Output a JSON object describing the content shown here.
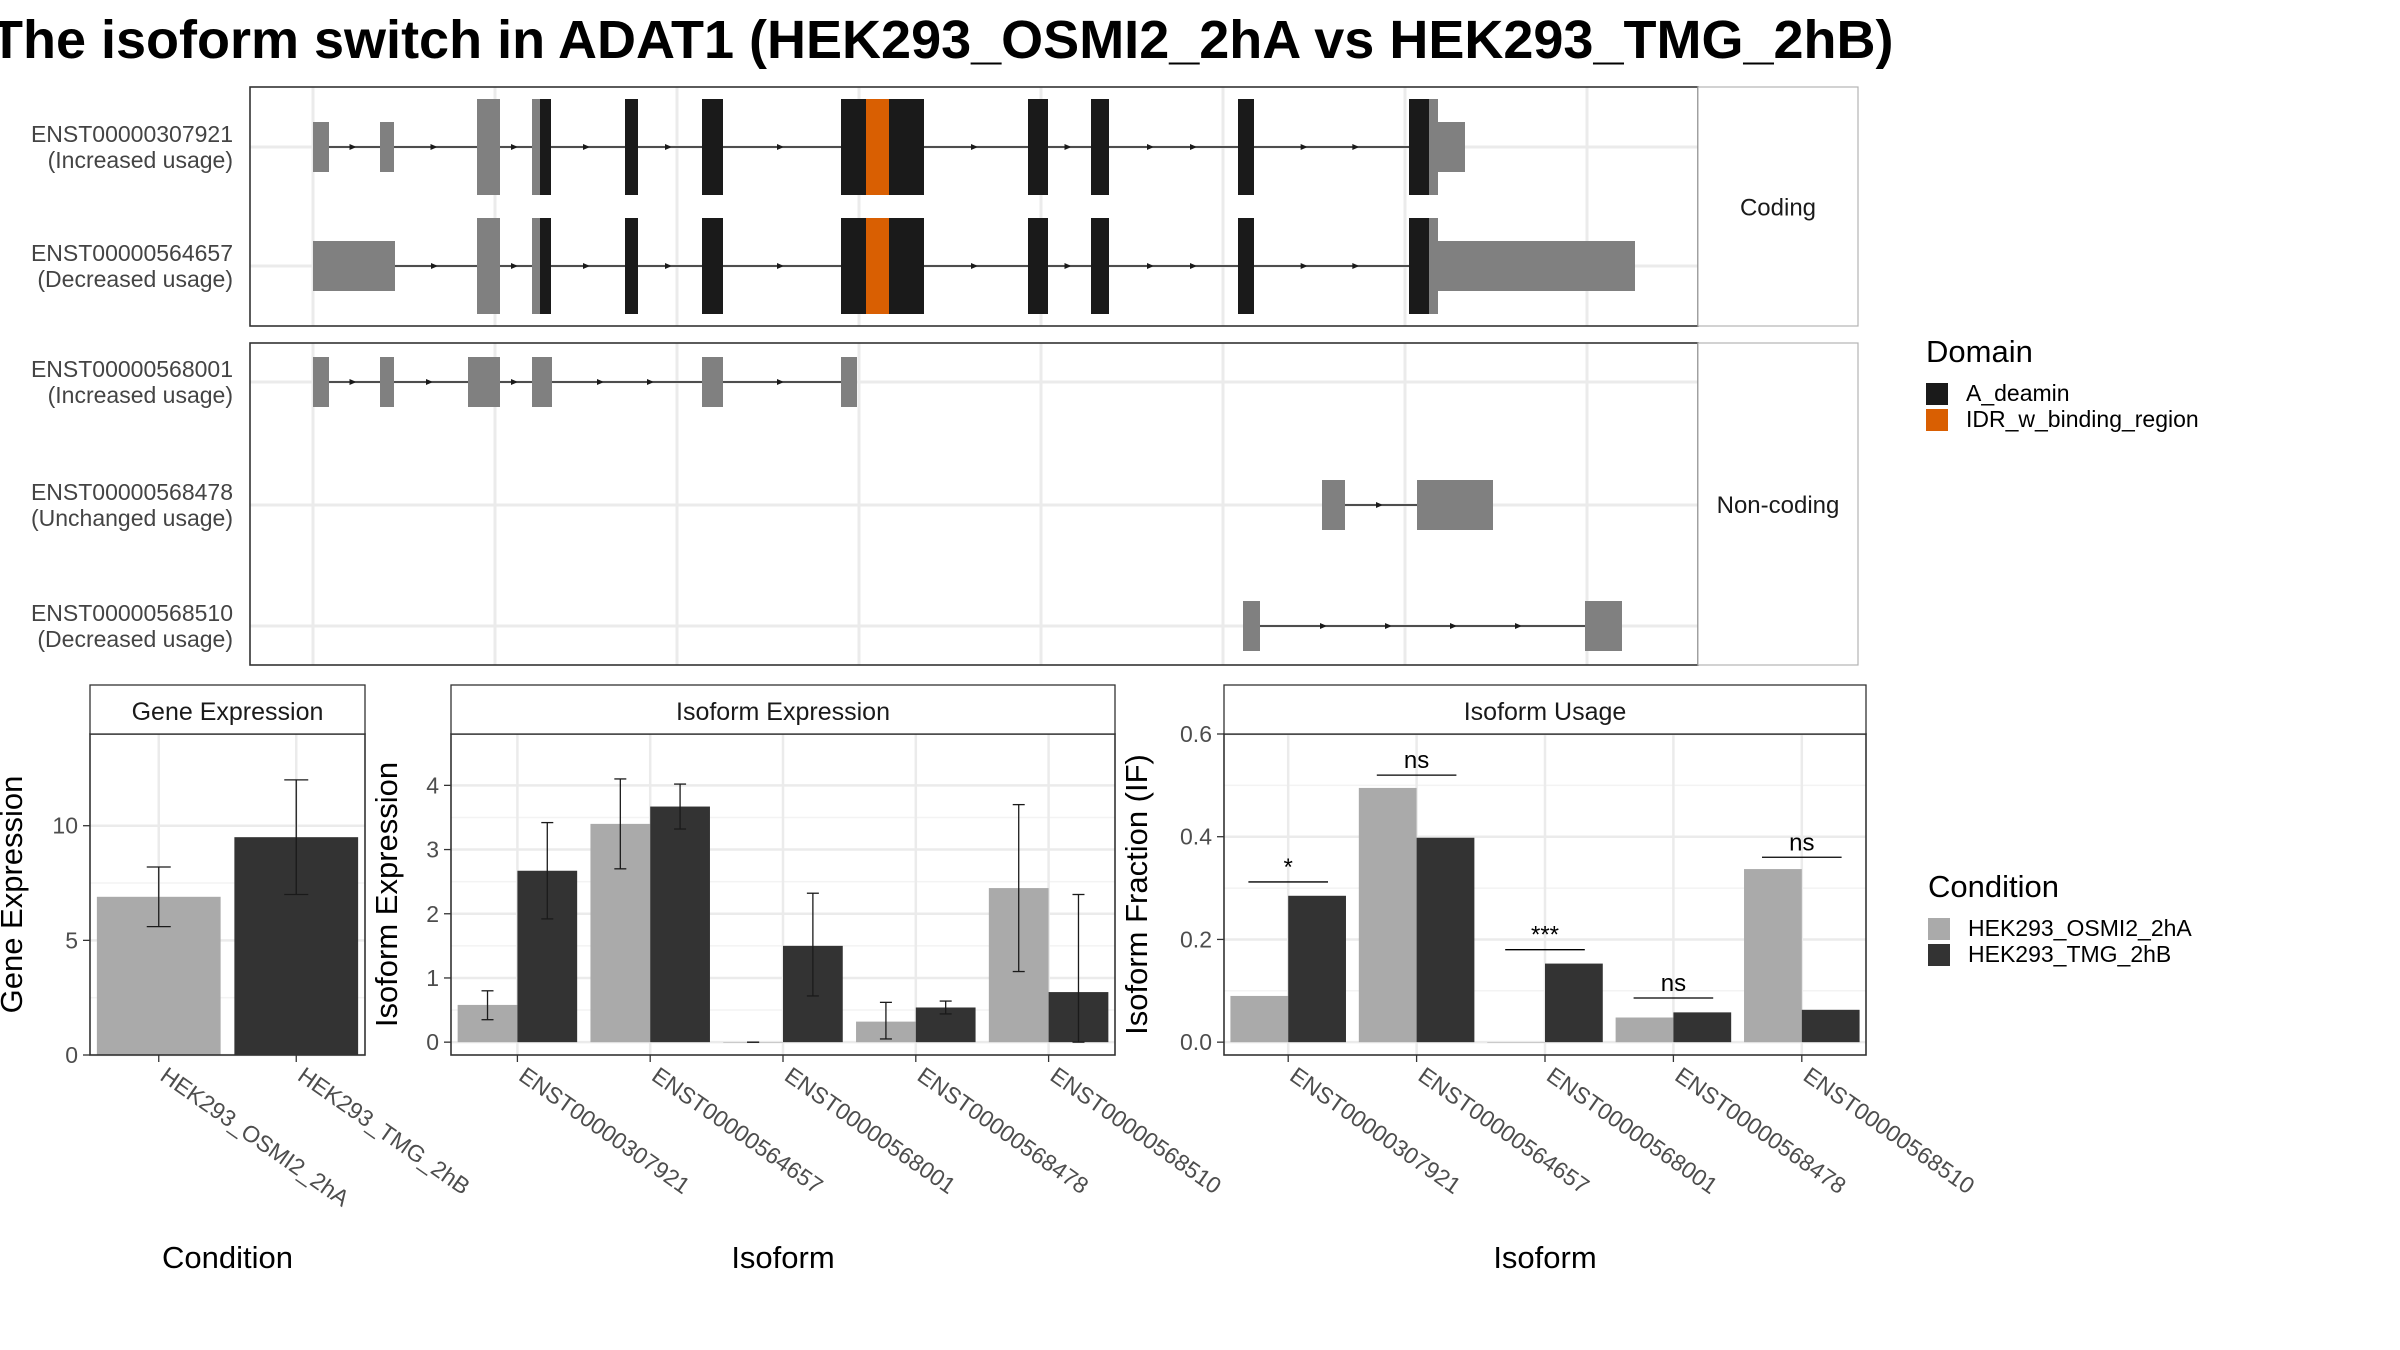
{
  "title": "The isoform switch in ADAT1 (HEK293_OSMI2_2hA vs HEK293_TMG_2hB)",
  "colors": {
    "domain_A_deamin": "#1a1a1a",
    "domain_IDR_w_binding_region": "#d95f02",
    "non_domain_exon": "#808080",
    "condition_1": "#aaaaaa",
    "condition_2": "#333333",
    "panel_border": "#333333",
    "grid": "#ebebeb",
    "strip_bg": "#ffffff"
  },
  "structure": {
    "panels": [
      {
        "label": "Coding",
        "transcripts": [
          {
            "id": "ENST00000307921",
            "usage": "(Increased usage)"
          },
          {
            "id": "ENST00000564657",
            "usage": "(Decreased usage)"
          }
        ]
      },
      {
        "label": "Non-coding",
        "transcripts": [
          {
            "id": "ENST00000568001",
            "usage": "(Increased usage)"
          },
          {
            "id": "ENST00000568478",
            "usage": "(Unchanged usage)"
          },
          {
            "id": "ENST00000568510",
            "usage": "(Decreased usage)"
          }
        ]
      }
    ]
  },
  "legend_domain": {
    "title": "Domain",
    "items": [
      {
        "label": "A_deamin",
        "color": "#1a1a1a"
      },
      {
        "label": "IDR_w_binding_region",
        "color": "#d95f02"
      }
    ]
  },
  "legend_condition": {
    "title": "Condition",
    "items": [
      {
        "label": "HEK293_OSMI2_2hA",
        "color": "#aaaaaa"
      },
      {
        "label": "HEK293_TMG_2hB",
        "color": "#333333"
      }
    ]
  },
  "chart_data": [
    {
      "type": "bar",
      "title": "Gene Expression",
      "xlabel": "Condition",
      "ylabel": "Gene Expression",
      "categories": [
        "HEK293_OSMI2_2hA",
        "HEK293_TMG_2hB"
      ],
      "values": [
        6.9,
        9.5
      ],
      "error_low": [
        5.6,
        7.0
      ],
      "error_high": [
        8.2,
        12.0
      ],
      "ylim": [
        0,
        14
      ],
      "yticks": [
        0,
        5,
        10
      ]
    },
    {
      "type": "bar",
      "title": "Isoform Expression",
      "xlabel": "Isoform",
      "ylabel": "Isoform Expression",
      "categories": [
        "ENST00000307921",
        "ENST00000564657",
        "ENST00000568001",
        "ENST00000568478",
        "ENST00000568510"
      ],
      "series": [
        {
          "name": "HEK293_OSMI2_2hA",
          "values": [
            0.58,
            3.4,
            0.0,
            0.32,
            2.4
          ],
          "error_low": [
            0.35,
            2.7,
            0.0,
            0.05,
            1.1
          ],
          "error_high": [
            0.8,
            4.1,
            0.0,
            0.62,
            3.7
          ]
        },
        {
          "name": "HEK293_TMG_2hB",
          "values": [
            2.67,
            3.67,
            1.5,
            0.54,
            0.78
          ],
          "error_low": [
            1.92,
            3.32,
            0.72,
            0.44,
            0.0
          ],
          "error_high": [
            3.42,
            4.02,
            2.32,
            0.64,
            2.3
          ]
        }
      ],
      "ylim": [
        -0.2,
        4.8
      ],
      "yticks": [
        0,
        1,
        2,
        3,
        4
      ]
    },
    {
      "type": "bar",
      "title": "Isoform Usage",
      "xlabel": "Isoform",
      "ylabel": "Isoform Fraction (IF)",
      "categories": [
        "ENST00000307921",
        "ENST00000564657",
        "ENST00000568001",
        "ENST00000568478",
        "ENST00000568510"
      ],
      "series": [
        {
          "name": "HEK293_OSMI2_2hA",
          "values": [
            0.09,
            0.495,
            0.0,
            0.048,
            0.337
          ]
        },
        {
          "name": "HEK293_TMG_2hB",
          "values": [
            0.285,
            0.398,
            0.153,
            0.058,
            0.063
          ]
        }
      ],
      "significance": [
        "*",
        "ns",
        "***",
        "ns",
        "ns"
      ],
      "sig_levels": [
        0.312,
        0.52,
        0.18,
        0.086,
        0.36
      ],
      "ylim": [
        -0.025,
        0.6
      ],
      "yticks": [
        "0.0",
        "0.2",
        "0.4",
        "0.6"
      ]
    }
  ]
}
